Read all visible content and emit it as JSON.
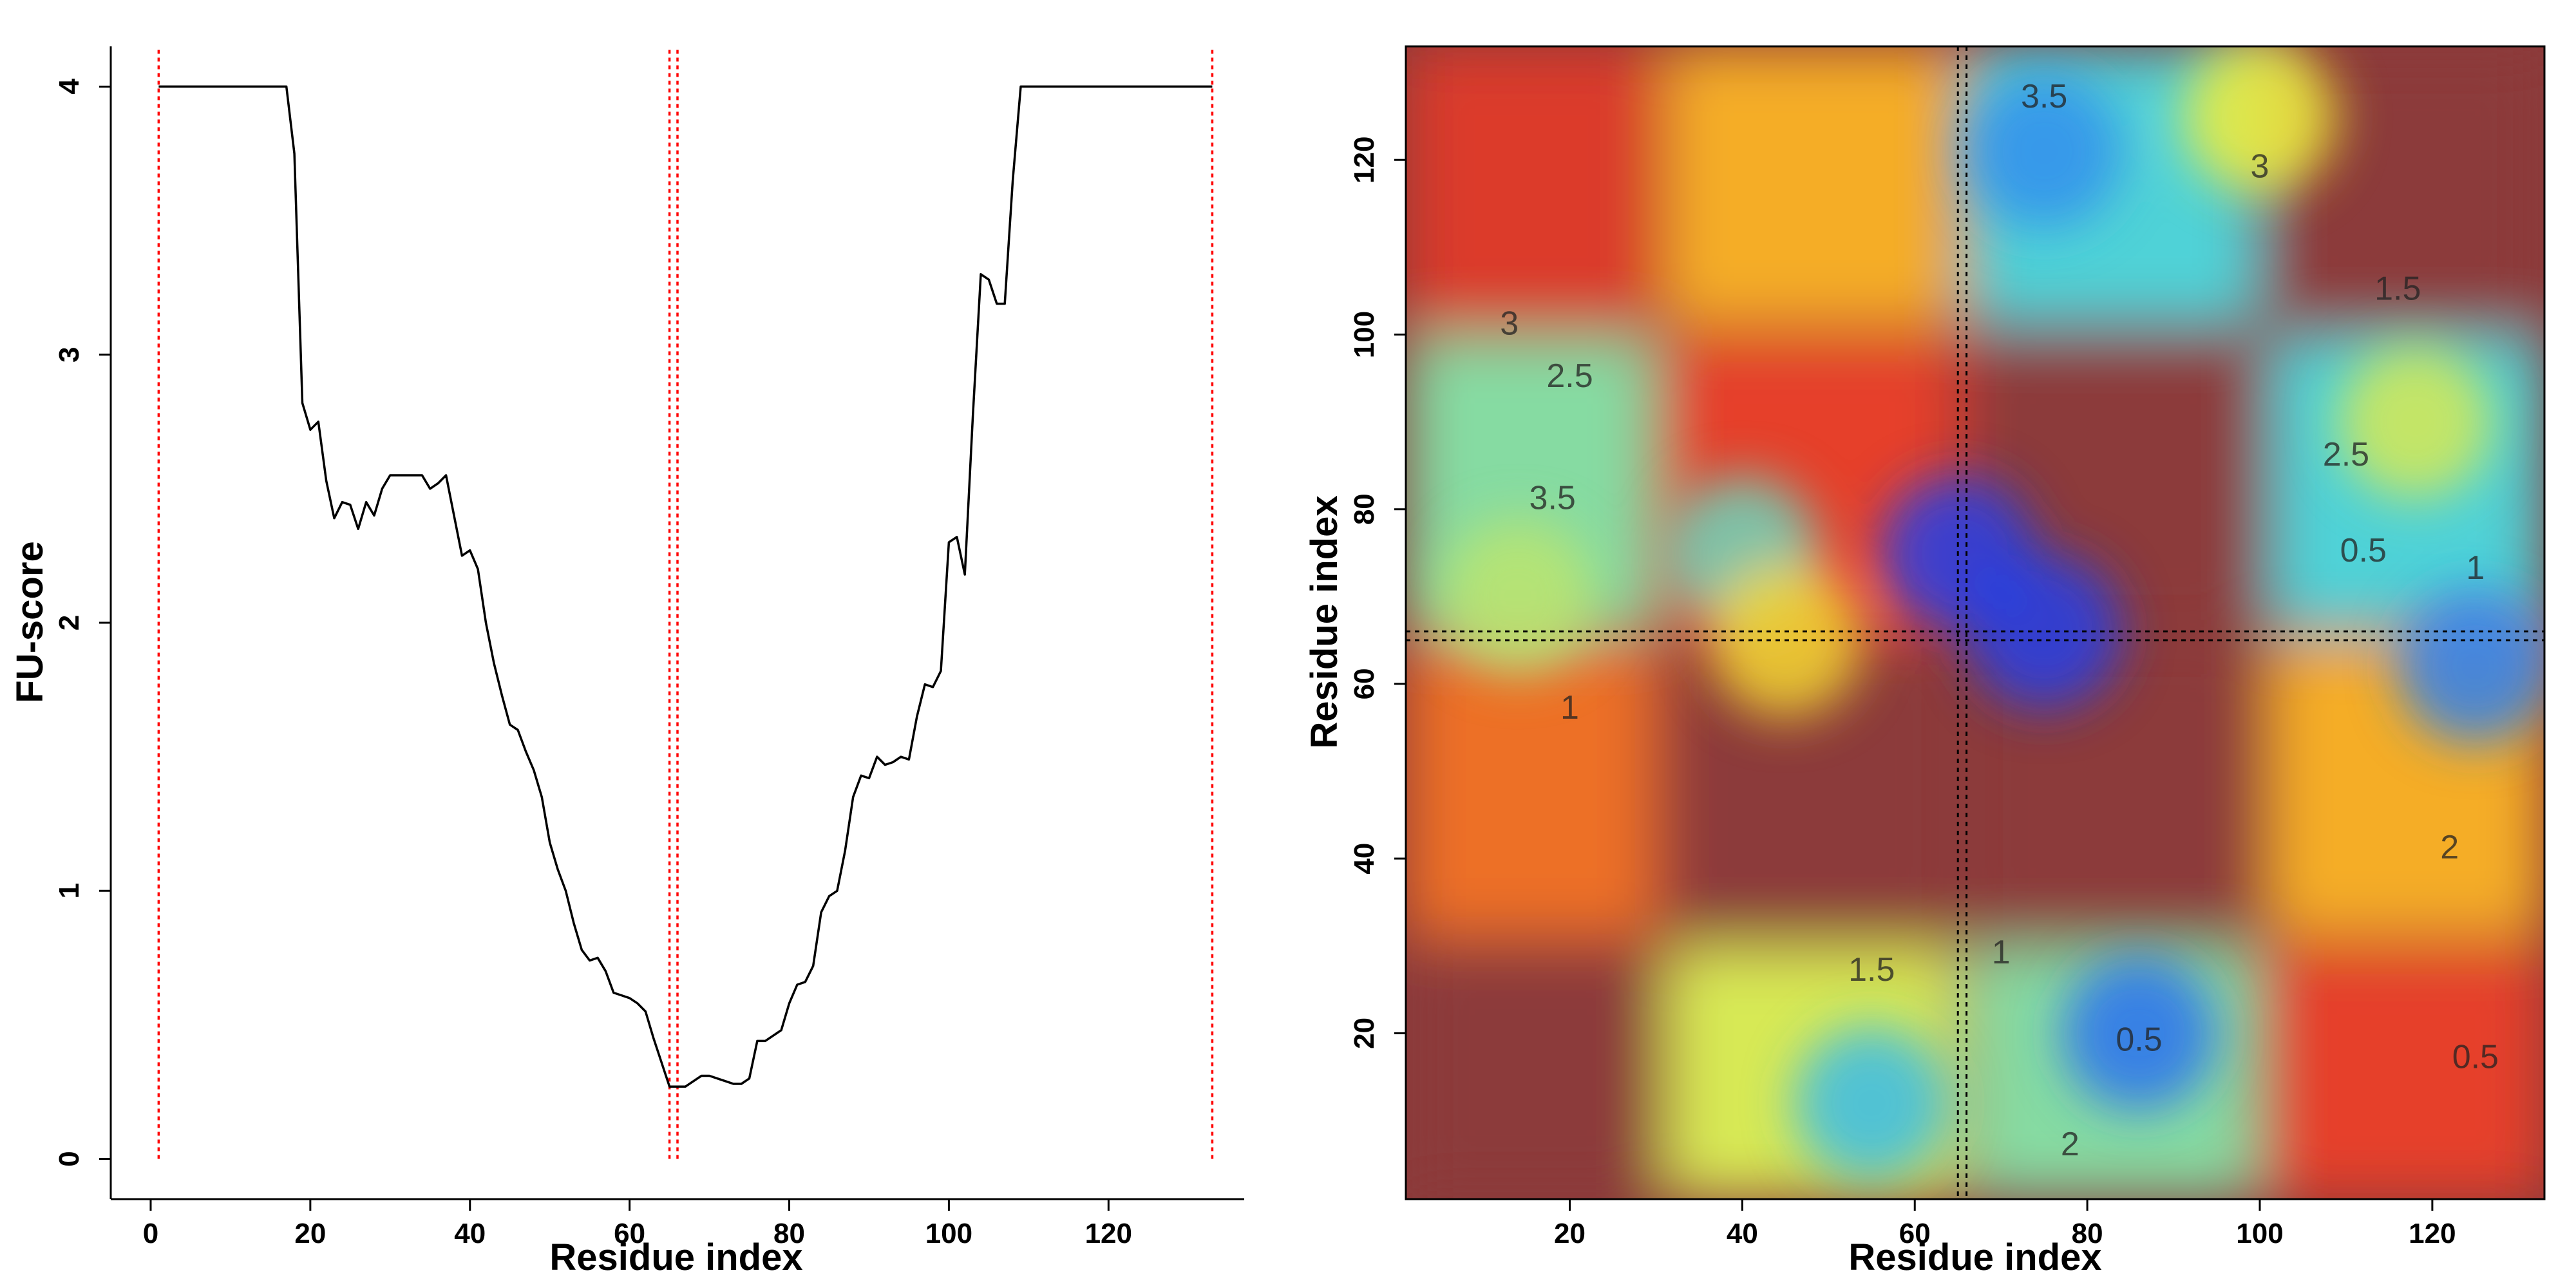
{
  "chart_data": [
    {
      "type": "line",
      "title": "",
      "xlabel": "Residue index",
      "ylabel": "FU-score",
      "xlim": [
        -5,
        137
      ],
      "ylim": [
        -0.15,
        4.15
      ],
      "xticks": [
        "0",
        "20",
        "40",
        "60",
        "80",
        "100",
        "120"
      ],
      "yticks": [
        "0",
        "1",
        "2",
        "3",
        "4"
      ],
      "grid": false,
      "legend": "none",
      "line_color": "#000000",
      "cut_line_color": "#ff0000",
      "cut_lines_x": [
        1,
        65,
        66,
        133
      ],
      "series": [
        {
          "x": [
            1,
            17,
            18,
            19,
            20,
            21,
            22,
            23,
            24,
            25,
            26,
            27,
            28,
            29,
            30,
            31,
            32,
            33,
            34,
            35,
            36,
            37,
            38,
            39,
            40,
            41,
            42,
            43,
            44,
            45,
            46,
            47,
            48,
            49,
            50,
            51,
            52,
            53,
            54,
            55,
            56,
            57,
            58,
            59,
            60,
            61,
            62,
            63,
            64,
            65,
            66,
            67,
            68,
            69,
            70,
            71,
            72,
            73,
            74,
            75,
            76,
            77,
            78,
            79,
            80,
            81,
            82,
            83,
            84,
            85,
            86,
            87,
            88,
            89,
            90,
            91,
            92,
            93,
            94,
            95,
            96,
            97,
            98,
            99,
            100,
            101,
            102,
            103,
            104,
            105,
            106,
            107,
            108,
            109,
            133
          ],
          "y": [
            4.0,
            4.0,
            3.75,
            2.82,
            2.72,
            2.75,
            2.53,
            2.39,
            2.45,
            2.44,
            2.35,
            2.45,
            2.4,
            2.5,
            2.55,
            2.55,
            2.55,
            2.55,
            2.55,
            2.5,
            2.52,
            2.55,
            2.4,
            2.25,
            2.27,
            2.2,
            2.0,
            1.85,
            1.73,
            1.62,
            1.6,
            1.52,
            1.45,
            1.35,
            1.18,
            1.08,
            1.0,
            0.88,
            0.78,
            0.74,
            0.75,
            0.7,
            0.62,
            0.61,
            0.6,
            0.58,
            0.55,
            0.45,
            0.36,
            0.27,
            0.27,
            0.27,
            0.29,
            0.31,
            0.31,
            0.3,
            0.29,
            0.28,
            0.28,
            0.3,
            0.44,
            0.44,
            0.46,
            0.48,
            0.58,
            0.65,
            0.66,
            0.72,
            0.92,
            0.98,
            1.0,
            1.15,
            1.35,
            1.43,
            1.42,
            1.5,
            1.47,
            1.48,
            1.5,
            1.49,
            1.65,
            1.77,
            1.76,
            1.82,
            2.3,
            2.32,
            2.18,
            2.77,
            3.3,
            3.28,
            3.19,
            3.19,
            3.65,
            4.0,
            4.0
          ]
        }
      ]
    },
    {
      "type": "heatmap",
      "title": "",
      "xlabel": "Residue index",
      "ylabel": "Residue index",
      "xlim": [
        1,
        133
      ],
      "ylim": [
        1,
        133
      ],
      "xticks": [
        "20",
        "40",
        "60",
        "80",
        "100",
        "120"
      ],
      "yticks": [
        "20",
        "40",
        "60",
        "80",
        "100",
        "120"
      ],
      "grid": false,
      "legend": "none",
      "colormap": [
        "#1e1ee0",
        "#2a6cf0",
        "#3ecfe8",
        "#f2ee3a",
        "#f5a623",
        "#e53a2a",
        "#8c3a3a"
      ],
      "background_color": "#8c3a3a",
      "symmetric": true,
      "cut_lines": [
        65,
        66
      ],
      "contour_labels": [
        "0.5",
        "1",
        "1.5",
        "2",
        "2.5",
        "3",
        "3.5"
      ],
      "blocks": [
        {
          "x": [
            1,
            30
          ],
          "y": [
            1,
            30
          ],
          "value": 4.0
        },
        {
          "x": [
            1,
            30
          ],
          "y": [
            31,
            65
          ],
          "value": 3.0
        },
        {
          "x": [
            1,
            30
          ],
          "y": [
            66,
            100
          ],
          "value": 1.6
        },
        {
          "x": [
            1,
            30
          ],
          "y": [
            101,
            133
          ],
          "value": 3.4
        },
        {
          "x": [
            31,
            65
          ],
          "y": [
            1,
            30
          ],
          "value": 1.9
        },
        {
          "x": [
            31,
            65
          ],
          "y": [
            31,
            65
          ],
          "value": 4.0
        },
        {
          "x": [
            31,
            65
          ],
          "y": [
            66,
            100
          ],
          "value": 3.3
        },
        {
          "x": [
            31,
            65
          ],
          "y": [
            101,
            133
          ],
          "value": 2.6
        },
        {
          "x": [
            66,
            100
          ],
          "y": [
            1,
            30
          ],
          "value": 1.6
        },
        {
          "x": [
            66,
            100
          ],
          "y": [
            31,
            65
          ],
          "value": 4.0
        },
        {
          "x": [
            66,
            100
          ],
          "y": [
            66,
            100
          ],
          "value": 4.0
        },
        {
          "x": [
            66,
            100
          ],
          "y": [
            101,
            133
          ],
          "value": 1.4
        },
        {
          "x": [
            101,
            133
          ],
          "y": [
            1,
            30
          ],
          "value": 3.3
        },
        {
          "x": [
            101,
            133
          ],
          "y": [
            31,
            65
          ],
          "value": 2.6
        },
        {
          "x": [
            101,
            133
          ],
          "y": [
            66,
            100
          ],
          "value": 1.4
        },
        {
          "x": [
            101,
            133
          ],
          "y": [
            101,
            133
          ],
          "value": 4.0
        }
      ],
      "blobs": [
        {
          "x": 40,
          "y": 75,
          "value": 1.5
        },
        {
          "x": 45,
          "y": 65,
          "value": 2.2
        },
        {
          "x": 86,
          "y": 20,
          "value": 0.7
        },
        {
          "x": 75,
          "y": 121,
          "value": 0.9
        },
        {
          "x": 14,
          "y": 70,
          "value": 1.8
        },
        {
          "x": 125,
          "y": 62,
          "value": 0.8
        },
        {
          "x": 118,
          "y": 90,
          "value": 1.9
        },
        {
          "x": 55,
          "y": 12,
          "value": 1.2
        },
        {
          "x": 100,
          "y": 125,
          "value": 2.0
        },
        {
          "x": 65,
          "y": 75,
          "value": 0.3
        },
        {
          "x": 75,
          "y": 66,
          "value": 0.3
        }
      ]
    }
  ]
}
